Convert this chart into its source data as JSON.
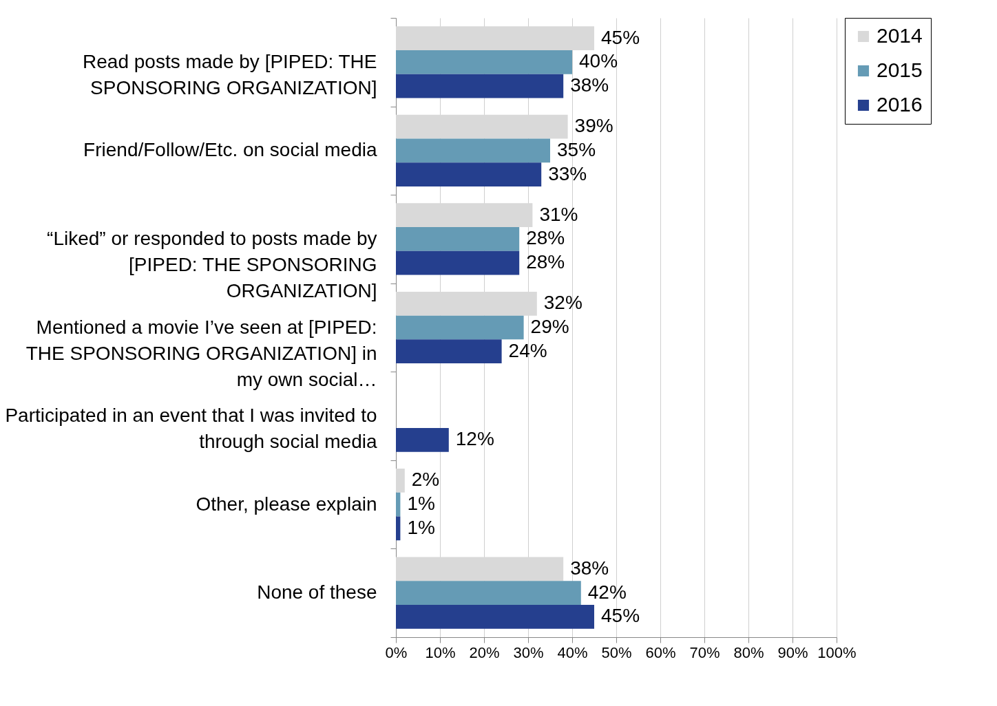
{
  "chart_data": {
    "type": "bar",
    "orientation": "horizontal",
    "categories": [
      "Read posts made by [PIPED: THE SPONSORING ORGANIZATION]",
      "Friend/Follow/Etc. on social media",
      "“Liked” or responded to posts made by [PIPED: THE SPONSORING ORGANIZATION]",
      "Mentioned a movie I’ve seen at [PIPED: THE SPONSORING ORGANIZATION] in my own social…",
      "Participated in an event that I was invited to through social media",
      "Other, please explain",
      "None of these"
    ],
    "series": [
      {
        "name": "2014",
        "color": "#d9d9d9",
        "values": [
          45,
          39,
          31,
          32,
          null,
          2,
          38
        ],
        "value_labels": [
          "45%",
          "39%",
          "31%",
          "32%",
          null,
          "2%",
          "38%"
        ]
      },
      {
        "name": "2015",
        "color": "#659bb5",
        "values": [
          40,
          35,
          28,
          29,
          null,
          1,
          42
        ],
        "value_labels": [
          "40%",
          "35%",
          "28%",
          "29%",
          null,
          "1%",
          "42%"
        ]
      },
      {
        "name": "2016",
        "color": "#253f8e",
        "values": [
          38,
          33,
          28,
          24,
          12,
          1,
          45
        ],
        "value_labels": [
          "38%",
          "33%",
          "28%",
          "24%",
          "12%",
          "1%",
          "45%"
        ]
      }
    ],
    "xlim": [
      0,
      100
    ],
    "xticks": [
      {
        "value": 0,
        "label": "0%"
      },
      {
        "value": 10,
        "label": "10%"
      },
      {
        "value": 20,
        "label": "20%"
      },
      {
        "value": 30,
        "label": "30%"
      },
      {
        "value": 40,
        "label": "40%"
      },
      {
        "value": 50,
        "label": "50%"
      },
      {
        "value": 60,
        "label": "60%"
      },
      {
        "value": 70,
        "label": "70%"
      },
      {
        "value": 80,
        "label": "80%"
      },
      {
        "value": 90,
        "label": "90%"
      },
      {
        "value": 100,
        "label": "100%"
      }
    ],
    "grid": "x",
    "legend": "right"
  }
}
